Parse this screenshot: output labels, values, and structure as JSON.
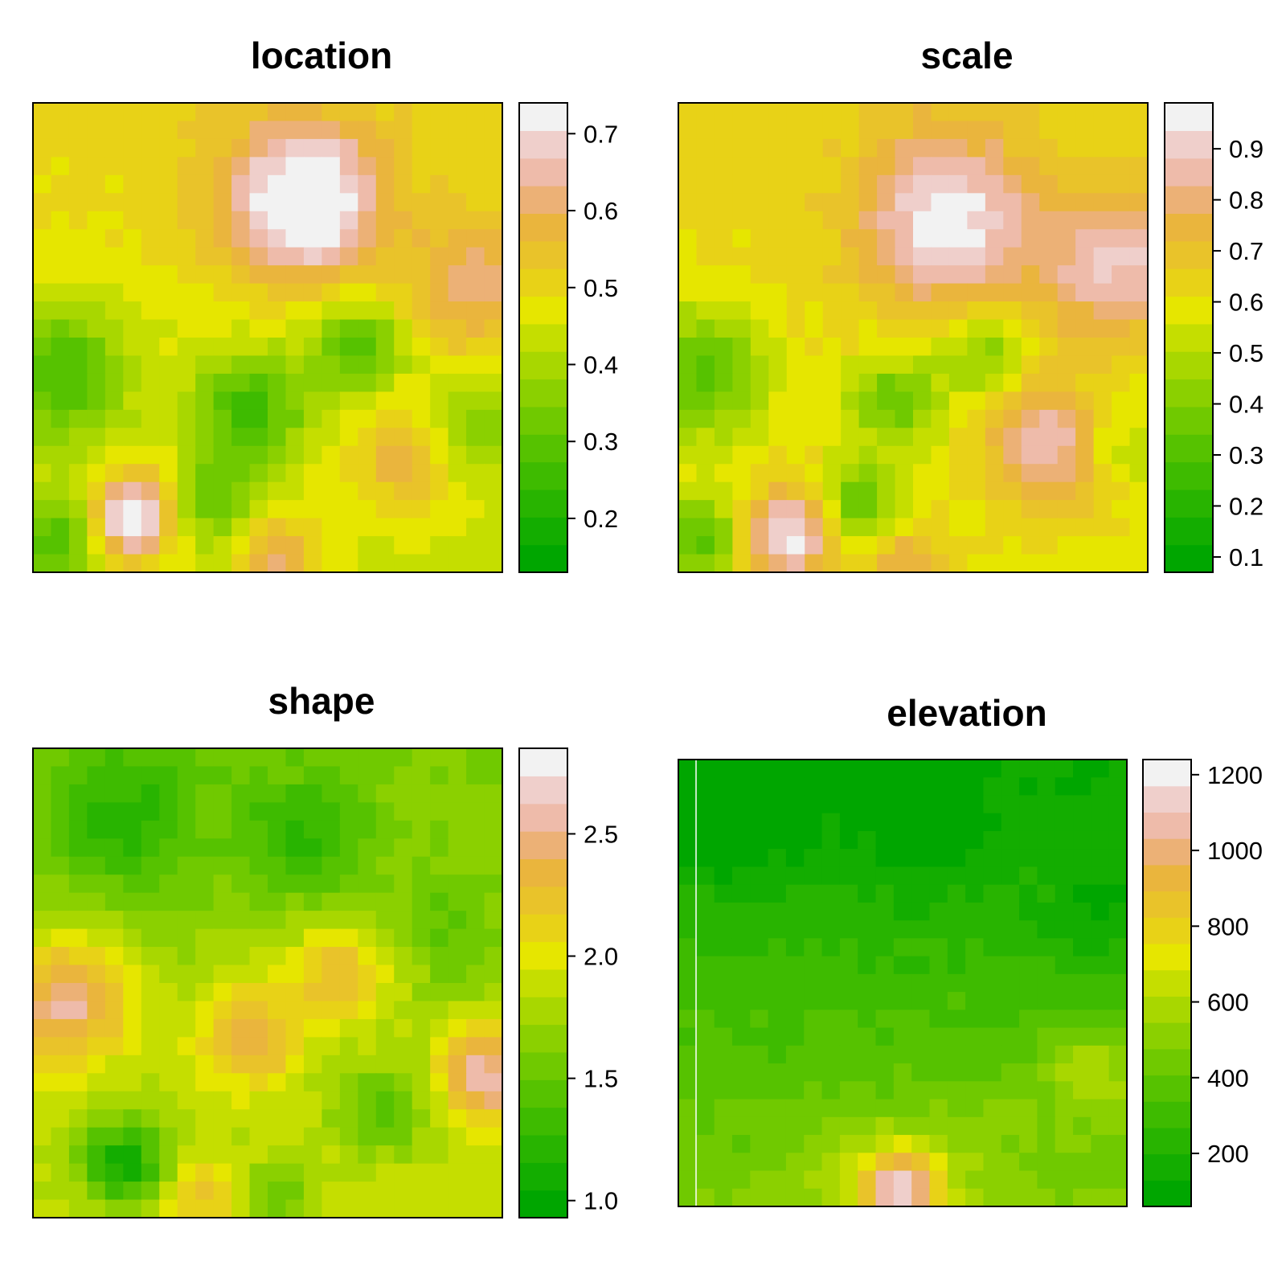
{
  "chart_data": [
    {
      "type": "heatmap",
      "title": "location",
      "value_range": [
        0.13,
        0.74
      ],
      "legend_ticks": [
        "0.2",
        "0.3",
        "0.4",
        "0.5",
        "0.6",
        "0.7"
      ],
      "legend_tick_values": [
        0.2,
        0.3,
        0.4,
        0.5,
        0.6,
        0.7
      ],
      "grid": {
        "nx": 26,
        "ny": 26,
        "seed": 1,
        "bumps": [
          {
            "x": 14.5,
            "y": 5.0,
            "h": 0.3,
            "s": 3.0
          },
          {
            "x": 24.0,
            "y": 9.5,
            "h": 0.14,
            "s": 2.6
          },
          {
            "x": 5.0,
            "y": 22.5,
            "h": 0.32,
            "s": 1.7
          },
          {
            "x": 13.0,
            "y": 24.5,
            "h": 0.18,
            "s": 1.5
          },
          {
            "x": 20.0,
            "y": 19.5,
            "h": 0.12,
            "s": 2.2
          },
          {
            "x": 1.0,
            "y": 14.5,
            "h": -0.2,
            "s": 2.6
          },
          {
            "x": 11.5,
            "y": 16.5,
            "h": -0.2,
            "s": 2.2
          },
          {
            "x": 17.5,
            "y": 13.0,
            "h": -0.18,
            "s": 1.8
          },
          {
            "x": 9.5,
            "y": 21.5,
            "h": -0.14,
            "s": 1.6
          },
          {
            "x": 1.0,
            "y": 23.5,
            "h": -0.18,
            "s": 1.6
          },
          {
            "x": 24.0,
            "y": 17.5,
            "h": -0.12,
            "s": 1.8
          }
        ],
        "base": 0.47,
        "trend": -0.07
      }
    },
    {
      "type": "heatmap",
      "title": "scale",
      "value_range": [
        0.07,
        0.99
      ],
      "legend_ticks": [
        "0.1",
        "0.2",
        "0.3",
        "0.4",
        "0.5",
        "0.6",
        "0.7",
        "0.8",
        "0.9"
      ],
      "legend_tick_values": [
        0.1,
        0.2,
        0.3,
        0.4,
        0.5,
        0.6,
        0.7,
        0.8,
        0.9
      ],
      "grid": {
        "nx": 26,
        "ny": 26,
        "seed": 2,
        "bumps": [
          {
            "x": 14.5,
            "y": 6.0,
            "h": 0.35,
            "s": 3.2
          },
          {
            "x": 23.5,
            "y": 8.5,
            "h": 0.28,
            "s": 2.6
          },
          {
            "x": 20.0,
            "y": 18.5,
            "h": 0.26,
            "s": 2.4
          },
          {
            "x": 5.5,
            "y": 23.5,
            "h": 0.36,
            "s": 1.8
          },
          {
            "x": 12.0,
            "y": 25.0,
            "h": 0.18,
            "s": 1.4
          },
          {
            "x": 1.0,
            "y": 14.5,
            "h": -0.28,
            "s": 2.6
          },
          {
            "x": 11.5,
            "y": 16.0,
            "h": -0.26,
            "s": 1.8
          },
          {
            "x": 16.5,
            "y": 13.5,
            "h": -0.22,
            "s": 1.6
          },
          {
            "x": 9.5,
            "y": 21.5,
            "h": -0.28,
            "s": 1.5
          },
          {
            "x": 0.8,
            "y": 23.5,
            "h": -0.28,
            "s": 1.6
          },
          {
            "x": 24.0,
            "y": 18.5,
            "h": -0.14,
            "s": 1.6
          }
        ],
        "base": 0.62,
        "trend": -0.05
      }
    },
    {
      "type": "heatmap",
      "title": "shape",
      "value_range": [
        0.93,
        2.85
      ],
      "legend_ticks": [
        "1.0",
        "1.5",
        "2.0",
        "2.5"
      ],
      "legend_tick_values": [
        1.0,
        1.5,
        2.0,
        2.5
      ],
      "grid": {
        "nx": 26,
        "ny": 26,
        "seed": 3,
        "bumps": [
          {
            "x": 4.5,
            "y": 3.5,
            "h": -0.45,
            "s": 3.0
          },
          {
            "x": 14.5,
            "y": 4.5,
            "h": -0.42,
            "s": 2.5
          },
          {
            "x": 22.5,
            "y": 9.5,
            "h": -0.25,
            "s": 2.2
          },
          {
            "x": 1.5,
            "y": 13.5,
            "h": 0.75,
            "s": 2.5
          },
          {
            "x": 16.5,
            "y": 12.0,
            "h": 0.55,
            "s": 2.0
          },
          {
            "x": 11.5,
            "y": 15.5,
            "h": 0.6,
            "s": 2.0
          },
          {
            "x": 24.5,
            "y": 17.5,
            "h": 0.8,
            "s": 1.8
          },
          {
            "x": 4.5,
            "y": 22.5,
            "h": -0.75,
            "s": 1.7
          },
          {
            "x": 9.0,
            "y": 24.5,
            "h": 0.35,
            "s": 1.5
          },
          {
            "x": 13.0,
            "y": 24.5,
            "h": -0.4,
            "s": 1.4
          },
          {
            "x": 19.0,
            "y": 19.5,
            "h": -0.4,
            "s": 1.7
          }
        ],
        "base": 1.75,
        "trend": 0.28
      }
    },
    {
      "type": "heatmap",
      "title": "elevation",
      "value_range": [
        60,
        1240
      ],
      "legend_ticks": [
        "200",
        "400",
        "600",
        "800",
        "1000",
        "1200"
      ],
      "legend_tick_values": [
        200,
        400,
        600,
        800,
        1000,
        1200
      ],
      "grid": {
        "nx": 25,
        "ny": 25,
        "seed": 4,
        "bumps": [
          {
            "x": 2.5,
            "y": 2.0,
            "h": -140,
            "s": 3.8
          },
          {
            "x": 13.5,
            "y": 3.5,
            "h": -110,
            "s": 3.0
          },
          {
            "x": 22.5,
            "y": 8.5,
            "h": -130,
            "s": 2.2
          },
          {
            "x": 12.0,
            "y": 23.5,
            "h": 620,
            "s": 1.6
          },
          {
            "x": 22.5,
            "y": 17.0,
            "h": 230,
            "s": 2.0
          },
          {
            "x": 9.0,
            "y": 23.0,
            "h": 120,
            "s": 3.0
          },
          {
            "x": 16.0,
            "y": 21.0,
            "h": 80,
            "s": 3.0
          }
        ],
        "base": 300,
        "trend": 320
      }
    }
  ]
}
